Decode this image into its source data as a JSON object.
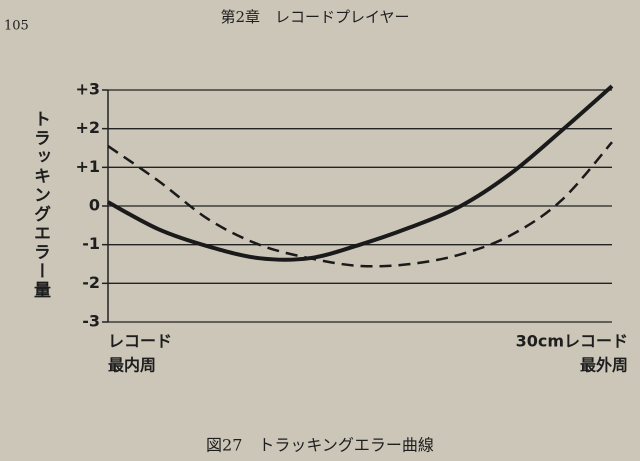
{
  "page_number": "105",
  "running_head": "第2章　レコードプレイヤー",
  "caption": "図27　トラッキングエラー曲線",
  "chart_data": {
    "type": "line",
    "ylabel": "トラッキングエラー量",
    "ylim": [
      -3,
      3
    ],
    "yticks": [
      {
        "value": 3,
        "label": "+3"
      },
      {
        "value": 2,
        "label": "+2"
      },
      {
        "value": 1,
        "label": "+1"
      },
      0,
      -1,
      -2,
      -3
    ],
    "grid": true,
    "categories": [
      null,
      null,
      null,
      null,
      null,
      null,
      null,
      null,
      null,
      null,
      null
    ],
    "x_axis_labels": {
      "left": [
        "レコード",
        "最内周"
      ],
      "right": [
        "30cmレコード",
        "最外周"
      ]
    },
    "series": [
      {
        "color": "#1a1a1a",
        "line_style": "solid",
        "line_width": 4,
        "values": [
          0.1,
          -0.6,
          -1.05,
          -1.35,
          -1.35,
          -1.0,
          -0.55,
          0.0,
          0.85,
          1.95,
          3.1
        ]
      },
      {
        "color": "#1a1a1a",
        "line_style": "dashed",
        "line_width": 2.5,
        "values": [
          1.55,
          0.65,
          -0.35,
          -1.0,
          -1.35,
          -1.55,
          -1.5,
          -1.25,
          -0.75,
          0.15,
          1.65
        ]
      }
    ]
  }
}
